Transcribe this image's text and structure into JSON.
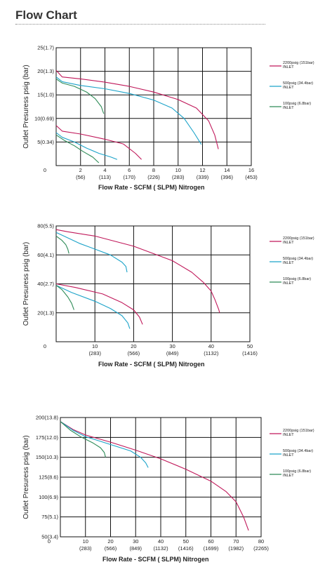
{
  "page": {
    "title": "Flow Chart"
  },
  "chart_data": [
    {
      "type": "line",
      "ylabel": "Outlet Presuress psig (bar)",
      "xlabel": "Flow Rate - SCFM ( SLPM) Nitrogen",
      "xlim": [
        0,
        16
      ],
      "ylim": [
        0,
        25
      ],
      "grid": true,
      "legend_position": "right",
      "x_ticks": [
        {
          "v": 0,
          "l1": "0",
          "l2": ""
        },
        {
          "v": 2,
          "l1": "2",
          "l2": "(56)"
        },
        {
          "v": 4,
          "l1": "4",
          "l2": "(113)"
        },
        {
          "v": 6,
          "l1": "6",
          "l2": "(170)"
        },
        {
          "v": 8,
          "l1": "8",
          "l2": "(226)"
        },
        {
          "v": 10,
          "l1": "10",
          "l2": "(283)"
        },
        {
          "v": 12,
          "l1": "12",
          "l2": "(339)"
        },
        {
          "v": 14,
          "l1": "14",
          "l2": "(396)"
        },
        {
          "v": 16,
          "l1": "16",
          "l2": "(453)"
        }
      ],
      "y_ticks": [
        {
          "v": 5,
          "l": "5(0.34)"
        },
        {
          "v": 10,
          "l": "10(0.69)"
        },
        {
          "v": 15,
          "l": "15(1.0)"
        },
        {
          "v": 20,
          "l": "20(1.3)"
        },
        {
          "v": 25,
          "l": "25(1.7)"
        }
      ],
      "legend": [
        {
          "l1": "2200psig (151bar)",
          "l2": "INLET",
          "color": "#c0185a"
        },
        {
          "l1": "500psig (34.4bar)",
          "l2": "INLET",
          "color": "#1ca3c9"
        },
        {
          "l1": "100psig (6.8bar)",
          "l2": "INLET",
          "color": "#2e8b57"
        }
      ],
      "series": [
        {
          "color": "#c0185a",
          "points": [
            [
              0,
              20.2
            ],
            [
              0.5,
              18.8
            ],
            [
              2,
              18.4
            ],
            [
              4,
              17.7
            ],
            [
              6,
              16.8
            ],
            [
              8,
              15.6
            ],
            [
              10,
              14.0
            ],
            [
              11.5,
              12.2
            ],
            [
              12.5,
              9.5
            ],
            [
              13,
              6.5
            ],
            [
              13.3,
              3.5
            ]
          ]
        },
        {
          "color": "#1ca3c9",
          "points": [
            [
              0,
              18.8
            ],
            [
              0.5,
              17.8
            ],
            [
              2,
              17.0
            ],
            [
              4,
              16.3
            ],
            [
              6,
              15.3
            ],
            [
              8,
              13.9
            ],
            [
              9.5,
              12.2
            ],
            [
              10.5,
              10.0
            ],
            [
              11.3,
              7.0
            ],
            [
              11.9,
              4.5
            ]
          ]
        },
        {
          "color": "#2e8b57",
          "points": [
            [
              0,
              18.4
            ],
            [
              0.5,
              17.5
            ],
            [
              1.5,
              16.8
            ],
            [
              2.5,
              15.6
            ],
            [
              3.2,
              14.2
            ],
            [
              3.7,
              12.5
            ],
            [
              3.9,
              11.0
            ]
          ]
        },
        {
          "color": "#c0185a",
          "points": [
            [
              0,
              8.5
            ],
            [
              0.5,
              7.3
            ],
            [
              2,
              6.7
            ],
            [
              4,
              5.6
            ],
            [
              5.5,
              4.6
            ],
            [
              6.5,
              2.6
            ],
            [
              7,
              1.3
            ]
          ]
        },
        {
          "color": "#1ca3c9",
          "points": [
            [
              0,
              7.0
            ],
            [
              0.5,
              6.0
            ],
            [
              1.5,
              5.0
            ],
            [
              2.5,
              3.7
            ],
            [
              3.5,
              2.6
            ],
            [
              4.5,
              1.8
            ],
            [
              5,
              1.3
            ]
          ]
        },
        {
          "color": "#2e8b57",
          "points": [
            [
              0,
              6.5
            ],
            [
              0.7,
              5.3
            ],
            [
              1.5,
              4.2
            ],
            [
              2.2,
              3.0
            ],
            [
              3,
              1.8
            ],
            [
              3.5,
              0.6
            ]
          ]
        }
      ]
    },
    {
      "type": "line",
      "ylabel": "Outlet Presuress psig (bar)",
      "xlabel": "Flow Rate - SCFM ( SLPM) Nitrogen",
      "xlim": [
        0,
        50
      ],
      "ylim": [
        0,
        80
      ],
      "grid": true,
      "legend_position": "right",
      "x_ticks": [
        {
          "v": 0,
          "l1": "0",
          "l2": ""
        },
        {
          "v": 10,
          "l1": "10",
          "l2": "(283)"
        },
        {
          "v": 20,
          "l1": "20",
          "l2": "(566)"
        },
        {
          "v": 30,
          "l1": "30",
          "l2": "(849)"
        },
        {
          "v": 40,
          "l1": "40",
          "l2": "(1132)"
        },
        {
          "v": 50,
          "l1": "50",
          "l2": "(1416)"
        }
      ],
      "y_ticks": [
        {
          "v": 20,
          "l": "20(1.3)"
        },
        {
          "v": 40,
          "l": "40(2.7)"
        },
        {
          "v": 60,
          "l": "60(4.1)"
        },
        {
          "v": 80,
          "l": "80(5.5)"
        }
      ],
      "legend": [
        {
          "l1": "2200psig (151bar)",
          "l2": "INLET",
          "color": "#c0185a"
        },
        {
          "l1": "500psig (34.4bar)",
          "l2": "INLET",
          "color": "#1ca3c9"
        },
        {
          "l1": "100psig (6.8bar)",
          "l2": "INLET",
          "color": "#2e8b57"
        }
      ],
      "series": [
        {
          "color": "#c0185a",
          "points": [
            [
              0,
              77.5
            ],
            [
              3,
              76
            ],
            [
              10,
              73
            ],
            [
              20,
              66
            ],
            [
              30,
              56
            ],
            [
              35,
              48
            ],
            [
              38,
              41
            ],
            [
              40,
              35
            ],
            [
              41,
              29
            ],
            [
              42,
              22
            ],
            [
              42.2,
              20
            ]
          ]
        },
        {
          "color": "#1ca3c9",
          "points": [
            [
              0,
              75.5
            ],
            [
              2,
              73
            ],
            [
              6,
              68
            ],
            [
              10,
              64
            ],
            [
              14,
              60
            ],
            [
              17,
              55
            ],
            [
              18,
              52
            ],
            [
              18.3,
              48
            ]
          ]
        },
        {
          "color": "#2e8b57",
          "points": [
            [
              0,
              73
            ],
            [
              1.5,
              70
            ],
            [
              2.5,
              67
            ],
            [
              3,
              64
            ],
            [
              3.3,
              61
            ]
          ]
        },
        {
          "color": "#c0185a",
          "points": [
            [
              0,
              40
            ],
            [
              5,
              37.5
            ],
            [
              12,
              33
            ],
            [
              17,
              27
            ],
            [
              20,
              22
            ],
            [
              21.5,
              17
            ],
            [
              22.3,
              12
            ]
          ]
        },
        {
          "color": "#1ca3c9",
          "points": [
            [
              0,
              39
            ],
            [
              4,
              34
            ],
            [
              10,
              28
            ],
            [
              14,
              23
            ],
            [
              17,
              18
            ],
            [
              18.5,
              13
            ],
            [
              19,
              9
            ]
          ]
        },
        {
          "color": "#2e8b57",
          "points": [
            [
              0,
              39
            ],
            [
              1.5,
              36
            ],
            [
              3,
              31
            ],
            [
              4,
              26.5
            ],
            [
              4.6,
              22
            ]
          ]
        }
      ]
    },
    {
      "type": "line",
      "ylabel": "Outlet Presuress psig (bar)",
      "xlabel": "Flow Rate - SCFM ( SLPM) Nitrogen",
      "xlim": [
        0,
        80
      ],
      "ylim": [
        50,
        200
      ],
      "grid": true,
      "legend_position": "right",
      "x_ticks": [
        {
          "v": 0,
          "l1": "0",
          "l2": ""
        },
        {
          "v": 10,
          "l1": "10",
          "l2": "(283)"
        },
        {
          "v": 20,
          "l1": "20",
          "l2": "(566)"
        },
        {
          "v": 30,
          "l1": "30",
          "l2": "(849)"
        },
        {
          "v": 40,
          "l1": "40",
          "l2": "(1132)"
        },
        {
          "v": 50,
          "l1": "50",
          "l2": "(1416)"
        },
        {
          "v": 60,
          "l1": "60",
          "l2": "(1699)"
        },
        {
          "v": 70,
          "l1": "70",
          "l2": "(1982)"
        },
        {
          "v": 80,
          "l1": "80",
          "l2": "(2265)"
        }
      ],
      "y_ticks": [
        {
          "v": 50,
          "l": "50(3.4)"
        },
        {
          "v": 75,
          "l": "75(5.1)"
        },
        {
          "v": 100,
          "l": "100(6.9)"
        },
        {
          "v": 125,
          "l": "125(8.6)"
        },
        {
          "v": 150,
          "l": "150(10.3)"
        },
        {
          "v": 175,
          "l": "175(12.0)"
        },
        {
          "v": 200,
          "l": "200(13.8)"
        }
      ],
      "legend": [
        {
          "l1": "2200psig (151bar)",
          "l2": "INLET",
          "color": "#c0185a"
        },
        {
          "l1": "500psig (34.4bar)",
          "l2": "INLET",
          "color": "#1ca3c9"
        },
        {
          "l1": "100psig (6.8bar)",
          "l2": "INLET",
          "color": "#2e8b57"
        }
      ],
      "series": [
        {
          "color": "#c0185a",
          "points": [
            [
              0,
              195
            ],
            [
              5,
              185
            ],
            [
              10,
              178
            ],
            [
              20,
              169
            ],
            [
              30,
              159
            ],
            [
              40,
              148
            ],
            [
              50,
              135
            ],
            [
              60,
              120
            ],
            [
              66,
              107
            ],
            [
              70,
              94
            ],
            [
              73,
              75
            ],
            [
              75,
              58
            ]
          ]
        },
        {
          "color": "#1ca3c9",
          "points": [
            [
              0,
              195
            ],
            [
              5,
              184
            ],
            [
              10,
              176
            ],
            [
              20,
              166
            ],
            [
              28,
              158
            ],
            [
              32,
              150
            ],
            [
              34,
              143
            ],
            [
              35,
              137
            ]
          ]
        },
        {
          "color": "#2e8b57",
          "points": [
            [
              0,
              195
            ],
            [
              4,
              184
            ],
            [
              8,
              176
            ],
            [
              13,
              168
            ],
            [
              16,
              162
            ],
            [
              17.5,
              156
            ],
            [
              18,
              150
            ]
          ]
        }
      ]
    }
  ]
}
